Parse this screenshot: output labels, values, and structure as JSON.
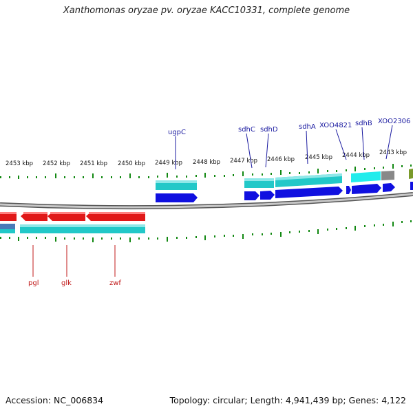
{
  "title": "Xanthomonas oryzae pv. oryzae KACC10331, complete genome",
  "footer": {
    "accession": "Accession: NC_006834",
    "summary": "Topology: circular; Length: 4,941,439 bp; Genes: 4,122"
  },
  "kbp_labels": [
    "2453 kbp",
    "2452 kbp",
    "2451 kbp",
    "2450 kbp",
    "2449 kbp",
    "2448 kbp",
    "2447 kbp",
    "2446 kbp",
    "2445 kbp",
    "2444 kbp",
    "2443 kbp"
  ],
  "gene_labels_top": [
    "ugpC",
    "sdhC",
    "sdhD",
    "sdhA",
    "XOO4821",
    "sdhB",
    "XOO2306"
  ],
  "gene_labels_bottom": [
    "pgl",
    "glk",
    "zwf"
  ],
  "colors": {
    "forward_gene": "#1010e0",
    "forward_cds": "#22c8c8",
    "reverse_gene": "#e01818",
    "reverse_cds": "#22c8c8",
    "backbone": "#9a9a9a",
    "ticks": "#118811",
    "label_blue": "#1a1aa0",
    "label_red": "#c01818"
  }
}
